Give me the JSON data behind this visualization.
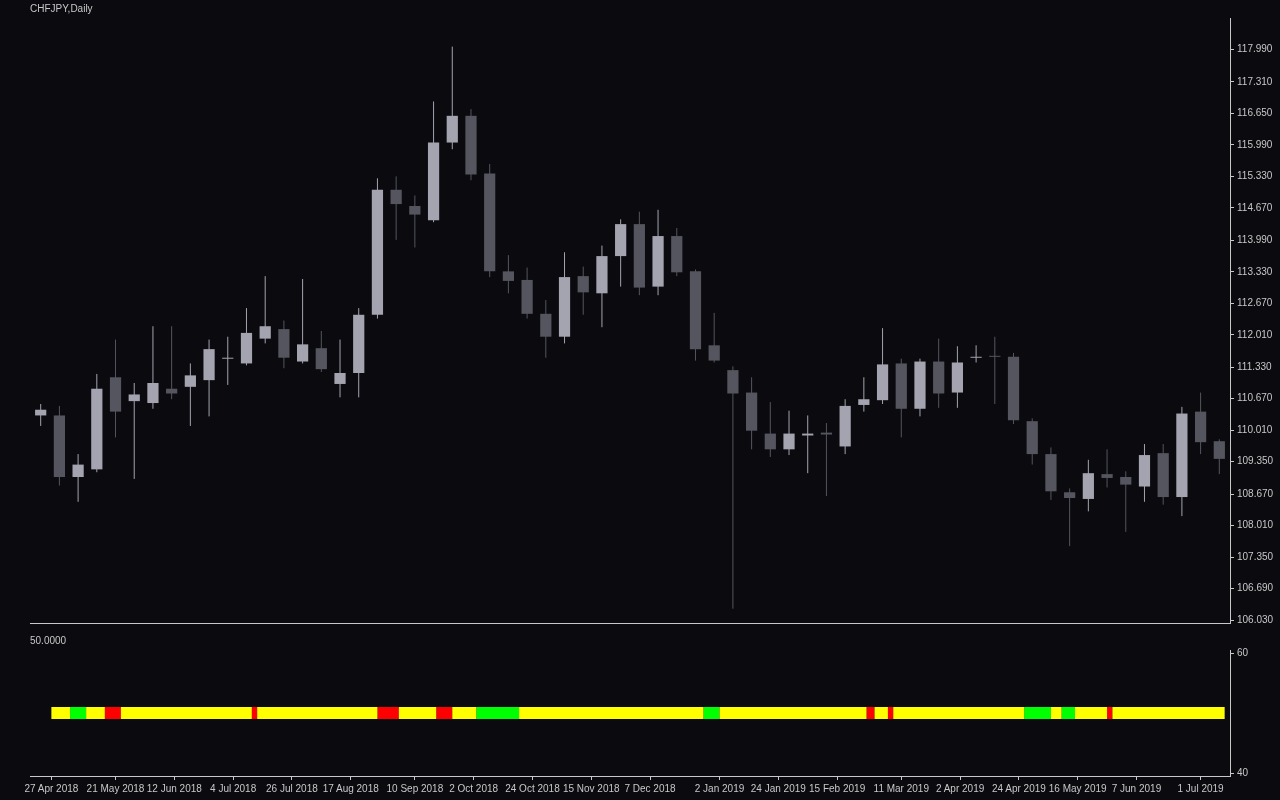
{
  "chart_data": [
    {
      "type": "candlestick",
      "title": "CHFJPY,Daily",
      "tick_labels": "y",
      "legend": false,
      "x": [
        "2018-04-23",
        "2018-04-30",
        "2018-05-07",
        "2018-05-14",
        "2018-05-21",
        "2018-05-28",
        "2018-06-04",
        "2018-06-11",
        "2018-06-18",
        "2018-06-25",
        "2018-07-02",
        "2018-07-09",
        "2018-07-16",
        "2018-07-23",
        "2018-07-30",
        "2018-08-06",
        "2018-08-13",
        "2018-08-20",
        "2018-08-27",
        "2018-09-03",
        "2018-09-10",
        "2018-09-17",
        "2018-09-24",
        "2018-10-01",
        "2018-10-08",
        "2018-10-15",
        "2018-10-22",
        "2018-10-29",
        "2018-11-05",
        "2018-11-12",
        "2018-11-19",
        "2018-11-26",
        "2018-12-03",
        "2018-12-10",
        "2018-12-17",
        "2018-12-24",
        "2018-12-31",
        "2019-01-07",
        "2019-01-14",
        "2019-01-21",
        "2019-01-28",
        "2019-02-04",
        "2019-02-11",
        "2019-02-18",
        "2019-02-25",
        "2019-03-04",
        "2019-03-11",
        "2019-03-18",
        "2019-03-25",
        "2019-04-01",
        "2019-04-08",
        "2019-04-15",
        "2019-04-22",
        "2019-04-29",
        "2019-05-06",
        "2019-05-13",
        "2019-05-20",
        "2019-05-27",
        "2019-06-03",
        "2019-06-10",
        "2019-06-17",
        "2019-06-24",
        "2019-07-01",
        "2019-07-08"
      ],
      "ohlc": [
        [
          110.32,
          110.56,
          110.1,
          110.44
        ],
        [
          110.32,
          110.52,
          108.85,
          109.03
        ],
        [
          109.03,
          109.51,
          108.51,
          109.29
        ],
        [
          109.19,
          111.19,
          109.13,
          110.88
        ],
        [
          111.12,
          111.91,
          109.86,
          110.4
        ],
        [
          110.62,
          111.0,
          108.99,
          110.76
        ],
        [
          110.58,
          112.19,
          110.46,
          111.0
        ],
        [
          110.88,
          112.19,
          110.66,
          110.78
        ],
        [
          110.92,
          111.41,
          110.1,
          111.16
        ],
        [
          111.06,
          111.91,
          110.3,
          111.71
        ],
        [
          111.51,
          111.97,
          110.96,
          111.53
        ],
        [
          111.41,
          112.57,
          111.37,
          112.05
        ],
        [
          111.93,
          113.24,
          111.83,
          112.19
        ],
        [
          112.13,
          112.31,
          111.31,
          111.53
        ],
        [
          111.45,
          113.18,
          111.41,
          111.81
        ],
        [
          111.73,
          112.09,
          111.23,
          111.29
        ],
        [
          110.98,
          111.91,
          110.7,
          111.21
        ],
        [
          111.21,
          112.57,
          110.7,
          112.43
        ],
        [
          112.43,
          115.29,
          112.35,
          115.05
        ],
        [
          115.05,
          115.33,
          114.0,
          114.75
        ],
        [
          114.71,
          114.93,
          113.84,
          114.53
        ],
        [
          114.41,
          116.9,
          114.37,
          116.04
        ],
        [
          116.04,
          118.05,
          115.9,
          116.6
        ],
        [
          116.6,
          116.74,
          115.25,
          115.37
        ],
        [
          115.39,
          115.59,
          113.22,
          113.34
        ],
        [
          113.34,
          113.68,
          112.88,
          113.14
        ],
        [
          113.16,
          113.42,
          112.35,
          112.45
        ],
        [
          112.45,
          112.74,
          111.53,
          111.97
        ],
        [
          111.97,
          113.74,
          111.83,
          113.22
        ],
        [
          113.24,
          113.44,
          112.43,
          112.9
        ],
        [
          112.88,
          113.88,
          112.17,
          113.66
        ],
        [
          113.66,
          114.43,
          113.02,
          114.33
        ],
        [
          114.33,
          114.59,
          112.84,
          113.0
        ],
        [
          113.02,
          114.63,
          112.84,
          114.08
        ],
        [
          114.08,
          114.25,
          113.24,
          113.32
        ],
        [
          113.34,
          113.38,
          111.47,
          111.71
        ],
        [
          111.79,
          112.47,
          111.43,
          111.47
        ],
        [
          111.27,
          111.35,
          106.27,
          110.78
        ],
        [
          110.8,
          111.12,
          109.61,
          110.0
        ],
        [
          109.94,
          110.6,
          109.45,
          109.61
        ],
        [
          109.61,
          110.42,
          109.49,
          109.94
        ],
        [
          109.9,
          110.32,
          109.11,
          109.94
        ],
        [
          109.96,
          110.16,
          108.63,
          109.92
        ],
        [
          109.67,
          110.66,
          109.51,
          110.52
        ],
        [
          110.54,
          111.12,
          110.4,
          110.66
        ],
        [
          110.64,
          112.15,
          110.56,
          111.39
        ],
        [
          111.41,
          111.51,
          109.86,
          110.46
        ],
        [
          110.46,
          111.51,
          110.3,
          111.45
        ],
        [
          111.45,
          111.93,
          110.48,
          110.78
        ],
        [
          110.8,
          111.77,
          110.48,
          111.43
        ],
        [
          111.55,
          111.79,
          111.43,
          111.55
        ],
        [
          111.57,
          111.97,
          110.56,
          111.55
        ],
        [
          111.55,
          111.63,
          110.14,
          110.22
        ],
        [
          110.2,
          110.26,
          109.29,
          109.51
        ],
        [
          109.51,
          109.65,
          108.55,
          108.73
        ],
        [
          108.71,
          108.79,
          107.58,
          108.59
        ],
        [
          108.57,
          109.39,
          108.31,
          109.11
        ],
        [
          109.09,
          109.61,
          108.81,
          109.01
        ],
        [
          109.03,
          109.15,
          107.88,
          108.87
        ],
        [
          108.83,
          109.72,
          108.51,
          109.49
        ],
        [
          109.53,
          109.72,
          108.45,
          108.61
        ],
        [
          108.61,
          110.5,
          108.21,
          110.36
        ],
        [
          110.4,
          110.8,
          109.51,
          109.76
        ],
        [
          109.78,
          109.82,
          109.09,
          109.41
        ]
      ],
      "colors": [
        "#a4a4b0",
        "#55555f",
        "#a4a4b0",
        "#a4a4b0",
        "#55555f",
        "#a4a4b0",
        "#a4a4b0",
        "#55555f",
        "#a4a4b0",
        "#a4a4b0",
        "#a4a4b0",
        "#a4a4b0",
        "#a4a4b0",
        "#55555f",
        "#a4a4b0",
        "#55555f",
        "#a4a4b0",
        "#a4a4b0",
        "#a4a4b0",
        "#55555f",
        "#55555f",
        "#a4a4b0",
        "#a4a4b0",
        "#55555f",
        "#55555f",
        "#55555f",
        "#55555f",
        "#55555f",
        "#a4a4b0",
        "#55555f",
        "#a4a4b0",
        "#a4a4b0",
        "#55555f",
        "#a4a4b0",
        "#55555f",
        "#55555f",
        "#55555f",
        "#55555f",
        "#55555f",
        "#55555f",
        "#a4a4b0",
        "#a4a4b0",
        "#55555f",
        "#a4a4b0",
        "#a4a4b0",
        "#a4a4b0",
        "#55555f",
        "#a4a4b0",
        "#55555f",
        "#a4a4b0",
        "#a4a4b0",
        "#55555f",
        "#55555f",
        "#55555f",
        "#55555f",
        "#55555f",
        "#a4a4b0",
        "#55555f",
        "#55555f",
        "#a4a4b0",
        "#55555f",
        "#a4a4b0",
        "#55555f",
        "#55555f"
      ],
      "xlim": [
        "2018-04-19",
        "2019-07-12"
      ],
      "ylim": [
        105.97,
        118.65
      ],
      "yticks": [
        {
          "value": 117.99,
          "label": "117.990"
        },
        {
          "value": 117.31,
          "label": "117.310"
        },
        {
          "value": 116.65,
          "label": "116.650"
        },
        {
          "value": 115.99,
          "label": "115.990"
        },
        {
          "value": 115.33,
          "label": "115.330"
        },
        {
          "value": 114.67,
          "label": "114.670"
        },
        {
          "value": 113.99,
          "label": "113.990"
        },
        {
          "value": 113.33,
          "label": "113.330"
        },
        {
          "value": 112.67,
          "label": "112.670"
        },
        {
          "value": 112.01,
          "label": "112.010"
        },
        {
          "value": 111.33,
          "label": "111.330"
        },
        {
          "value": 110.67,
          "label": "110.670"
        },
        {
          "value": 110.01,
          "label": "110.010"
        },
        {
          "value": 109.35,
          "label": "109.350"
        },
        {
          "value": 108.67,
          "label": "108.670"
        },
        {
          "value": 108.01,
          "label": "108.010"
        },
        {
          "value": 107.35,
          "label": "107.350"
        },
        {
          "value": 106.69,
          "label": "106.690"
        },
        {
          "value": 106.03,
          "label": "106.030"
        }
      ]
    },
    {
      "type": "line",
      "title": "50.0000",
      "legend": false,
      "series": [
        {
          "color": "#ffff00",
          "x": [
            "2018-04-27",
            "2018-05-04",
            "2018-05-07",
            "2018-05-10",
            "2018-05-17",
            "2018-05-20",
            "2018-05-23",
            "2018-07-11",
            "2018-07-12",
            "2018-07-13",
            "2018-08-27",
            "2018-08-31",
            "2018-09-04",
            "2018-09-18",
            "2018-09-21",
            "2018-09-24",
            "2018-10-03",
            "2018-10-11",
            "2018-10-19",
            "2018-12-27",
            "2018-12-30",
            "2019-01-02",
            "2019-02-26",
            "2019-02-27",
            "2019-03-01",
            "2019-03-06",
            "2019-03-07",
            "2019-03-08",
            "2019-04-26",
            "2019-05-01",
            "2019-05-06",
            "2019-05-10",
            "2019-05-13",
            "2019-05-15",
            "2019-05-27",
            "2019-05-28",
            "2019-05-29",
            "2019-07-10"
          ],
          "values": [
            50,
            50,
            null,
            50,
            50,
            null,
            50,
            50,
            null,
            50,
            50,
            null,
            50,
            50,
            null,
            50,
            50,
            null,
            50,
            50,
            null,
            50,
            50,
            null,
            50,
            50,
            null,
            50,
            50,
            null,
            50,
            50,
            null,
            50,
            50,
            null,
            50,
            50
          ]
        },
        {
          "color": "#00ff00",
          "x": [
            "2018-05-04",
            "2018-05-10",
            "2018-07-01",
            "2018-10-03",
            "2018-10-19",
            "2018-11-20",
            "2018-12-27",
            "2019-01-02",
            "2019-03-01",
            "2019-04-26",
            "2019-05-06",
            "2019-05-08",
            "2019-05-10",
            "2019-05-15"
          ],
          "values": [
            50,
            50,
            null,
            50,
            50,
            null,
            50,
            50,
            null,
            50,
            50,
            null,
            50,
            50
          ]
        },
        {
          "color": "#ff0000",
          "x": [
            "2018-05-17",
            "2018-05-23",
            "2018-06-15",
            "2018-07-11",
            "2018-07-13",
            "2018-08-01",
            "2018-08-27",
            "2018-09-04",
            "2018-09-10",
            "2018-09-18",
            "2018-09-24",
            "2019-01-15",
            "2019-02-26",
            "2019-03-01",
            "2019-03-04",
            "2019-03-06",
            "2019-03-08",
            "2019-04-15",
            "2019-05-27",
            "2019-05-29"
          ],
          "values": [
            50,
            50,
            null,
            50,
            50,
            null,
            50,
            50,
            null,
            50,
            50,
            null,
            50,
            50,
            null,
            50,
            50,
            null,
            50,
            50
          ]
        }
      ],
      "xlim": [
        "2018-04-19",
        "2019-07-12"
      ],
      "xticks": [
        {
          "value": "2018-04-27",
          "label": "27 Apr 2018"
        },
        {
          "value": "2018-05-21",
          "label": "21 May 2018"
        },
        {
          "value": "2018-06-12",
          "label": "12 Jun 2018"
        },
        {
          "value": "2018-07-04",
          "label": "4 Jul 2018"
        },
        {
          "value": "2018-07-26",
          "label": "26 Jul 2018"
        },
        {
          "value": "2018-08-17",
          "label": "17 Aug 2018"
        },
        {
          "value": "2018-09-10",
          "label": "10 Sep 2018"
        },
        {
          "value": "2018-10-02",
          "label": "2 Oct 2018"
        },
        {
          "value": "2018-10-24",
          "label": "24 Oct 2018"
        },
        {
          "value": "2018-11-15",
          "label": "15 Nov 2018"
        },
        {
          "value": "2018-12-07",
          "label": "7 Dec 2018"
        },
        {
          "value": "2019-01-02",
          "label": "2 Jan 2019"
        },
        {
          "value": "2019-01-24",
          "label": "24 Jan 2019"
        },
        {
          "value": "2019-02-15",
          "label": "15 Feb 2019"
        },
        {
          "value": "2019-03-11",
          "label": "11 Mar 2019"
        },
        {
          "value": "2019-04-02",
          "label": "2 Apr 2019"
        },
        {
          "value": "2019-04-24",
          "label": "24 Apr 2019"
        },
        {
          "value": "2019-05-16",
          "label": "16 May 2019"
        },
        {
          "value": "2019-06-07",
          "label": "7 Jun 2019"
        },
        {
          "value": "2019-07-01",
          "label": "1 Jul 2019"
        }
      ],
      "ylim": [
        39.5,
        60.5
      ],
      "yticks": [
        40,
        60
      ]
    }
  ]
}
